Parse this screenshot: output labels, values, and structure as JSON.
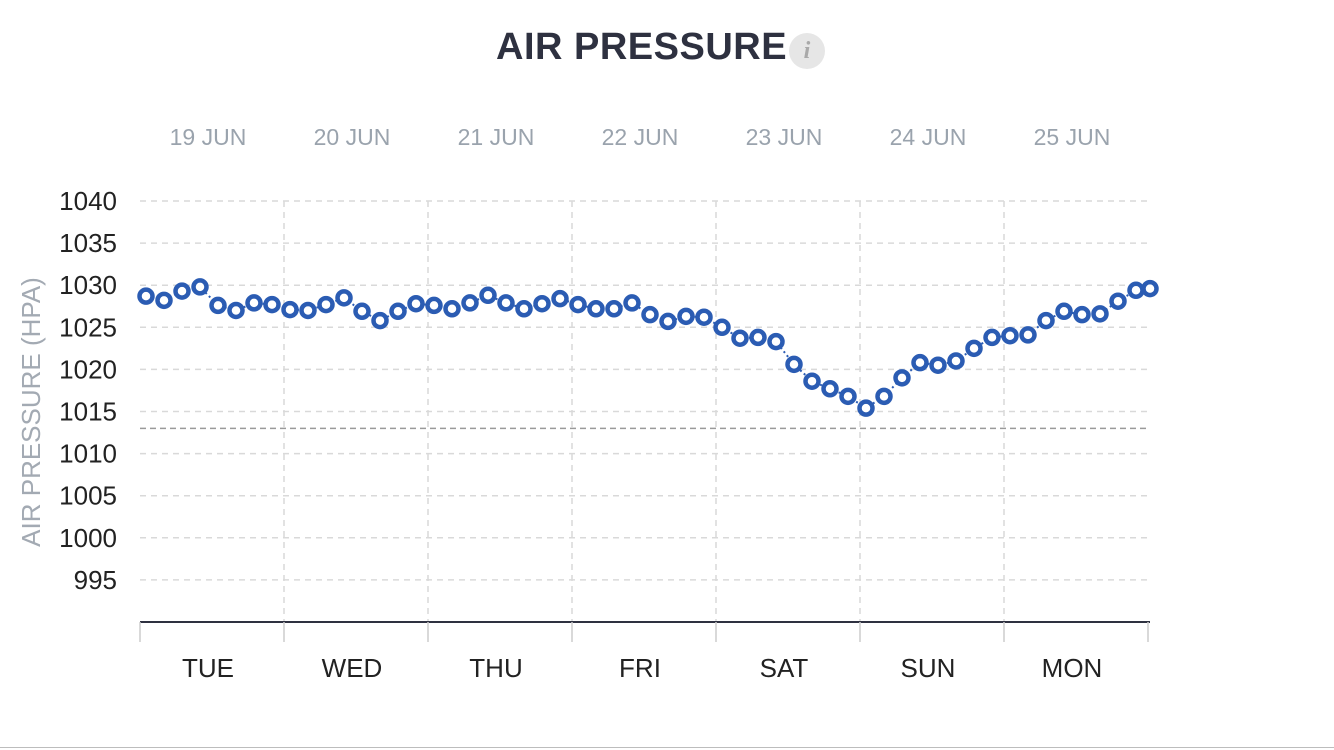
{
  "title": "AIR PRESSURE",
  "info_icon": "i",
  "colors": {
    "series": "#2b5cb3",
    "grid": "#d9d9d9",
    "reference_line": "#9a9a9a",
    "date_text": "#9aa3ad",
    "axis_text": "#222222",
    "ylabel_text": "#a3aab3"
  },
  "chart_data": {
    "type": "scatter",
    "title": "AIR PRESSURE",
    "ylabel": "AIR PRESSURE (HPA)",
    "xlabel": "",
    "ylim": [
      990,
      1040
    ],
    "yticks": [
      1040,
      1035,
      1030,
      1025,
      1020,
      1015,
      1010,
      1005,
      1000,
      995
    ],
    "reference_line": 1013,
    "grid": true,
    "dates": [
      "19 JUN",
      "20 JUN",
      "21 JUN",
      "22 JUN",
      "23 JUN",
      "24 JUN",
      "25 JUN"
    ],
    "days": [
      "TUE",
      "WED",
      "THU",
      "FRI",
      "SAT",
      "SUN",
      "MON"
    ],
    "series": [
      {
        "values": [
          1028.7,
          1028.2,
          1029.3,
          1029.8,
          1027.6,
          1027.0,
          1027.9,
          1027.7,
          1027.1,
          1027.0,
          1027.7,
          1028.5,
          1026.9,
          1025.8,
          1026.9,
          1027.8,
          1027.6,
          1027.2,
          1027.9,
          1028.8,
          1027.9,
          1027.2,
          1027.8,
          1028.4,
          1027.7,
          1027.2,
          1027.2,
          1027.9,
          1026.5,
          1025.7,
          1026.3,
          1026.2,
          1025.0,
          1023.7,
          1023.8,
          1023.3,
          1020.6,
          1018.6,
          1017.7,
          1016.8,
          1015.4,
          1016.8,
          1019.0,
          1020.8,
          1020.5,
          1021.0,
          1022.5,
          1023.8,
          1024.0,
          1024.1,
          1025.8,
          1026.9,
          1026.5,
          1026.6,
          1028.1,
          1029.4,
          1029.6
        ]
      }
    ]
  }
}
